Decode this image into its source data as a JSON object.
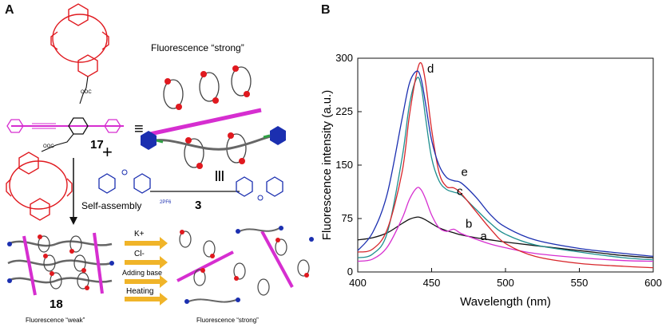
{
  "panel_a": {
    "letter": "A",
    "label_strong_top": "Fluorescence “strong”",
    "compound_17": "17",
    "plus_sign": "+",
    "equiv_sign": "≡",
    "triple_bar": "|||",
    "compound_3": "3",
    "counterion": "2PF6",
    "self_assembly": "Self-assembly",
    "compound_18": "18",
    "stimuli": [
      "K+",
      "Cl-",
      "Adding base",
      "Heating"
    ],
    "label_weak": "Fluorescence “weak”",
    "label_strong_bottom": "Fluorescence “strong”",
    "colors": {
      "polymer": "#d62ed0",
      "crown": "#e0191f",
      "ammonium": "#1b2fb0",
      "arrow": "#f0b429",
      "ring": "#444444"
    }
  },
  "panel_b": {
    "letter": "B"
  },
  "chart_data": {
    "type": "line",
    "title": "",
    "xlabel": "Wavelength (nm)",
    "ylabel": "Fluorescence intensity (a.u.)",
    "xlim": [
      400,
      600
    ],
    "ylim": [
      0,
      300
    ],
    "xticks": [
      400,
      450,
      500,
      550,
      600
    ],
    "yticks": [
      0,
      75,
      150,
      225,
      300
    ],
    "x": [
      400,
      410,
      420,
      430,
      435,
      440,
      443,
      446,
      450,
      455,
      460,
      465,
      470,
      480,
      490,
      500,
      520,
      550,
      580,
      600
    ],
    "series": [
      {
        "name": "a",
        "color": "#111111",
        "values": [
          45,
          48,
          55,
          68,
          74,
          77,
          76,
          73,
          68,
          62,
          58,
          55,
          52,
          48,
          45,
          42,
          37,
          30,
          23,
          20
        ]
      },
      {
        "name": "b",
        "color": "#d62ed0",
        "values": [
          15,
          18,
          35,
          75,
          102,
          118,
          115,
          102,
          80,
          62,
          57,
          60,
          54,
          46,
          39,
          34,
          26,
          20,
          16,
          15
        ]
      },
      {
        "name": "c",
        "color": "#1e8f8f",
        "values": [
          20,
          25,
          55,
          160,
          235,
          272,
          260,
          215,
          160,
          128,
          116,
          112,
          108,
          88,
          68,
          53,
          38,
          28,
          20,
          17
        ]
      },
      {
        "name": "d",
        "color": "#d8262b",
        "values": [
          28,
          32,
          60,
          140,
          220,
          280,
          293,
          265,
          200,
          140,
          120,
          118,
          110,
          85,
          60,
          40,
          22,
          12,
          8,
          6
        ]
      },
      {
        "name": "e",
        "color": "#1b2fb0",
        "values": [
          30,
          55,
          110,
          215,
          265,
          282,
          270,
          235,
          185,
          150,
          133,
          128,
          125,
          105,
          80,
          63,
          45,
          33,
          26,
          22
        ]
      }
    ],
    "curve_labels": [
      "a",
      "b",
      "c",
      "d",
      "e"
    ]
  }
}
